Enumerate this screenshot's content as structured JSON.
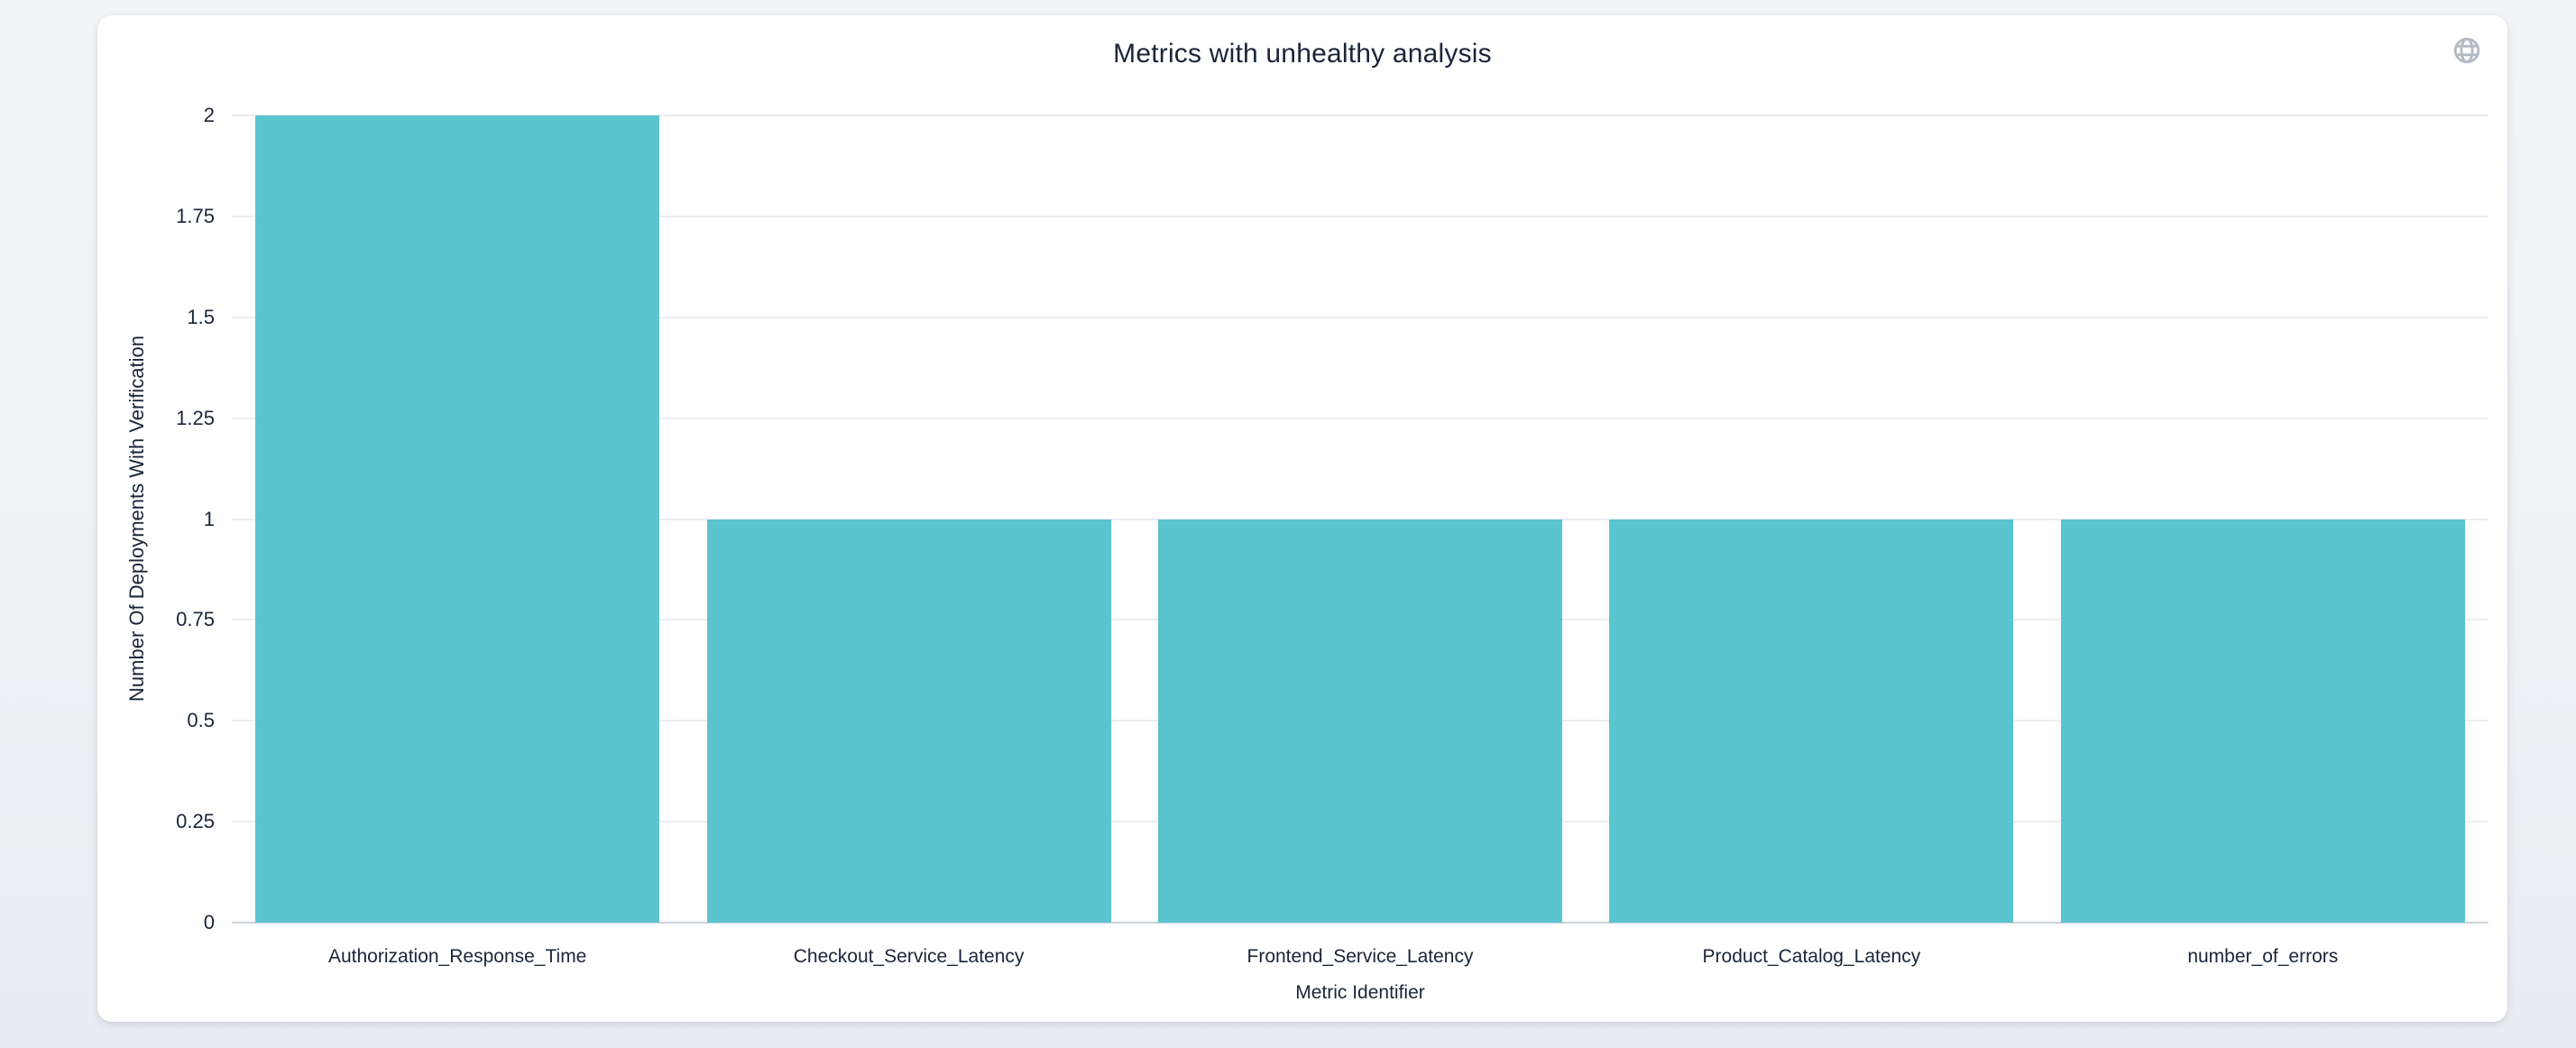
{
  "card": {
    "globe_icon_color": "#b4bac4"
  },
  "chart_data": {
    "type": "bar",
    "title": "Metrics with unhealthy analysis",
    "categories": [
      "Authorization_Response_Time",
      "Checkout_Service_Latency",
      "Frontend_Service_Latency",
      "Product_Catalog_Latency",
      "number_of_errors"
    ],
    "values": [
      2,
      1,
      1,
      1,
      1
    ],
    "xlabel": "Metric Identifier",
    "ylabel": "Number Of Deployments With Verification",
    "ylim": [
      0,
      2
    ],
    "yticks": [
      0,
      0.25,
      0.5,
      0.75,
      1,
      1.25,
      1.5,
      1.75,
      2
    ],
    "ytick_labels": [
      "0",
      "0.25",
      "0.5",
      "0.75",
      "1",
      "1.25",
      "1.5",
      "1.75",
      "2"
    ],
    "bar_color": "#5ac4cf",
    "grid": true,
    "legend": false,
    "legend_position": "none"
  }
}
